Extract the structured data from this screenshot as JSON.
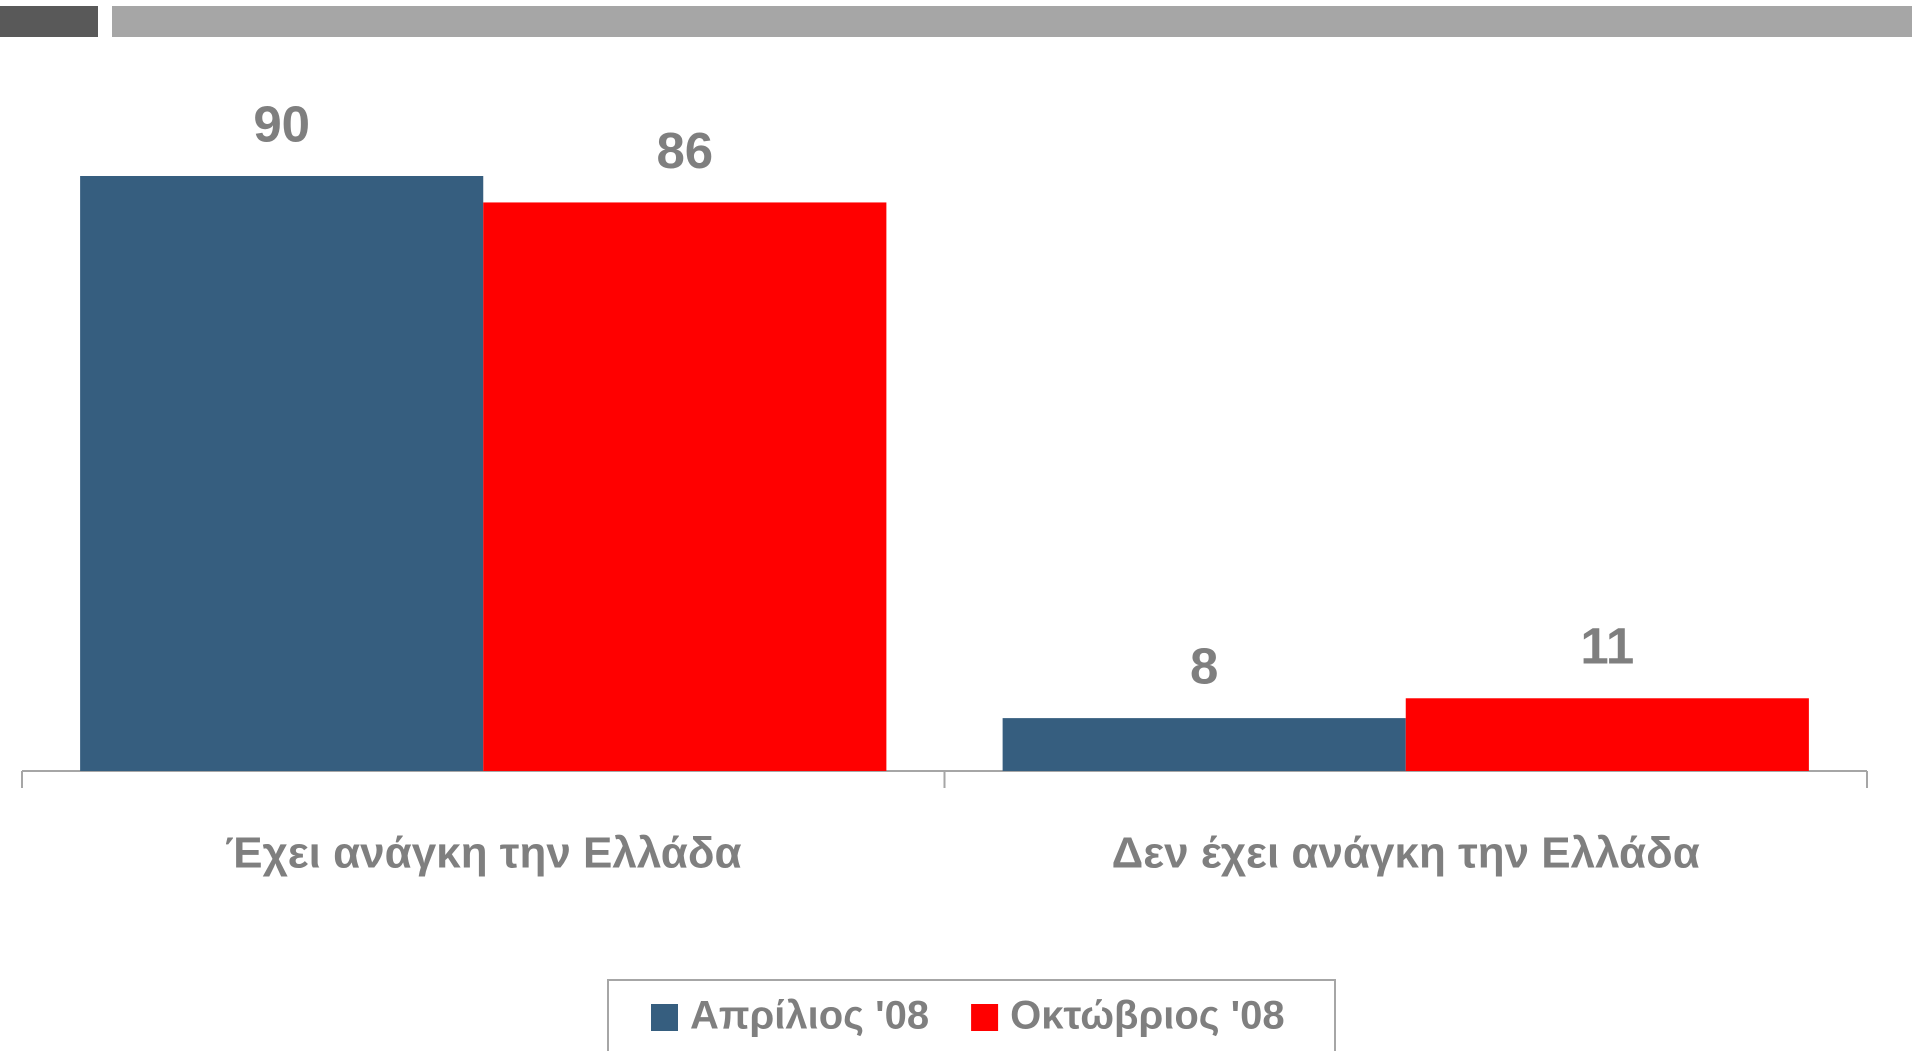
{
  "chart_data": {
    "type": "bar",
    "categories": [
      "Έχει ανάγκη την Ελλάδα",
      "Δεν έχει ανάγκη την Ελλάδα"
    ],
    "series": [
      {
        "name": "Απρίλιος '08",
        "color": "#365e7f",
        "values": [
          90,
          8
        ]
      },
      {
        "name": "Οκτώβριος '08",
        "color": "#ff0000",
        "values": [
          86,
          11
        ]
      }
    ]
  }
}
